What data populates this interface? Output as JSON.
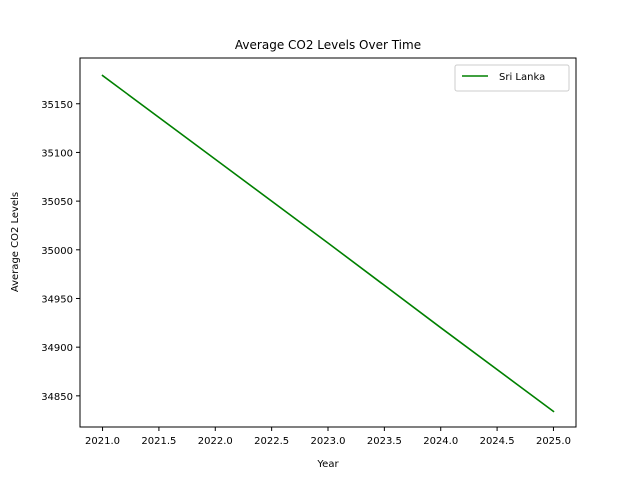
{
  "chart_data": {
    "type": "line",
    "title": "Average CO2 Levels Over Time",
    "xlabel": "Year",
    "ylabel": "Average CO2 Levels",
    "xlim": [
      2020.8,
      2025.2
    ],
    "ylim": [
      34818,
      35197
    ],
    "xticks": [
      2021.0,
      2021.5,
      2022.0,
      2022.5,
      2023.0,
      2023.5,
      2024.0,
      2024.5,
      2025.0
    ],
    "xtick_labels": [
      "2021.0",
      "2021.5",
      "2022.0",
      "2022.5",
      "2023.0",
      "2023.5",
      "2024.0",
      "2024.5",
      "2025.0"
    ],
    "yticks": [
      34850,
      34900,
      34950,
      35000,
      35050,
      35100,
      35150
    ],
    "ytick_labels": [
      "34850",
      "34900",
      "34950",
      "35000",
      "35050",
      "35100",
      "35150"
    ],
    "grid": false,
    "legend_position": "top-right",
    "series": [
      {
        "name": "Sri Lanka",
        "color": "#008000",
        "x": [
          2021,
          2022,
          2023,
          2024,
          2025
        ],
        "y": [
          35179,
          35093,
          35007,
          34920,
          34834
        ]
      }
    ]
  }
}
